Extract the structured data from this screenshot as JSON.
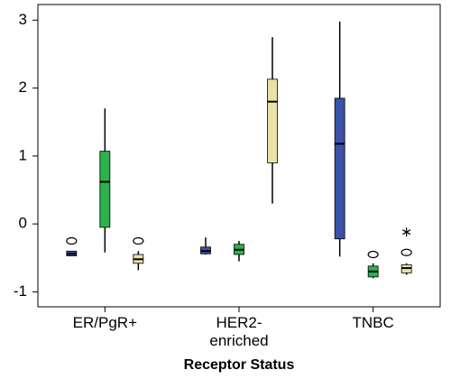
{
  "chart_data": {
    "type": "box",
    "x_label": "Receptor Status",
    "categories": [
      "ER/PgR+",
      "HER2-\nenriched",
      "TNBC"
    ],
    "ylim": [
      -1.22,
      3.23
    ],
    "yticks": [
      -1,
      0,
      1,
      2,
      3
    ],
    "series": [
      {
        "color": "#3a52a8",
        "boxes": [
          {
            "min": -0.47,
            "q1": -0.47,
            "median": -0.44,
            "q3": -0.4,
            "max": -0.4,
            "outliers": [
              -0.25
            ],
            "extremes": []
          },
          {
            "min": -0.45,
            "q1": -0.44,
            "median": -0.4,
            "q3": -0.34,
            "max": -0.2,
            "outliers": [],
            "extremes": []
          },
          {
            "min": -0.48,
            "q1": -0.22,
            "median": 1.18,
            "q3": 1.85,
            "max": 2.98,
            "outliers": [],
            "extremes": []
          }
        ]
      },
      {
        "color": "#2bb24c",
        "boxes": [
          {
            "min": -0.42,
            "q1": -0.05,
            "median": 0.62,
            "q3": 1.07,
            "max": 1.7,
            "outliers": [],
            "extremes": []
          },
          {
            "min": -0.55,
            "q1": -0.45,
            "median": -0.38,
            "q3": -0.3,
            "max": -0.25,
            "outliers": [],
            "extremes": []
          },
          {
            "min": -0.8,
            "q1": -0.78,
            "median": -0.7,
            "q3": -0.62,
            "max": -0.58,
            "outliers": [
              -0.45
            ],
            "extremes": []
          }
        ]
      },
      {
        "color": "#e8e2a8",
        "boxes": [
          {
            "min": -0.68,
            "q1": -0.58,
            "median": -0.52,
            "q3": -0.45,
            "max": -0.4,
            "outliers": [
              -0.25
            ],
            "extremes": []
          },
          {
            "min": 0.3,
            "q1": 0.9,
            "median": 1.8,
            "q3": 2.13,
            "max": 2.75,
            "outliers": [],
            "extremes": []
          },
          {
            "min": -0.75,
            "q1": -0.72,
            "median": -0.65,
            "q3": -0.6,
            "max": -0.58,
            "outliers": [
              -0.42
            ],
            "extremes": [
              -0.12
            ]
          }
        ]
      }
    ]
  }
}
